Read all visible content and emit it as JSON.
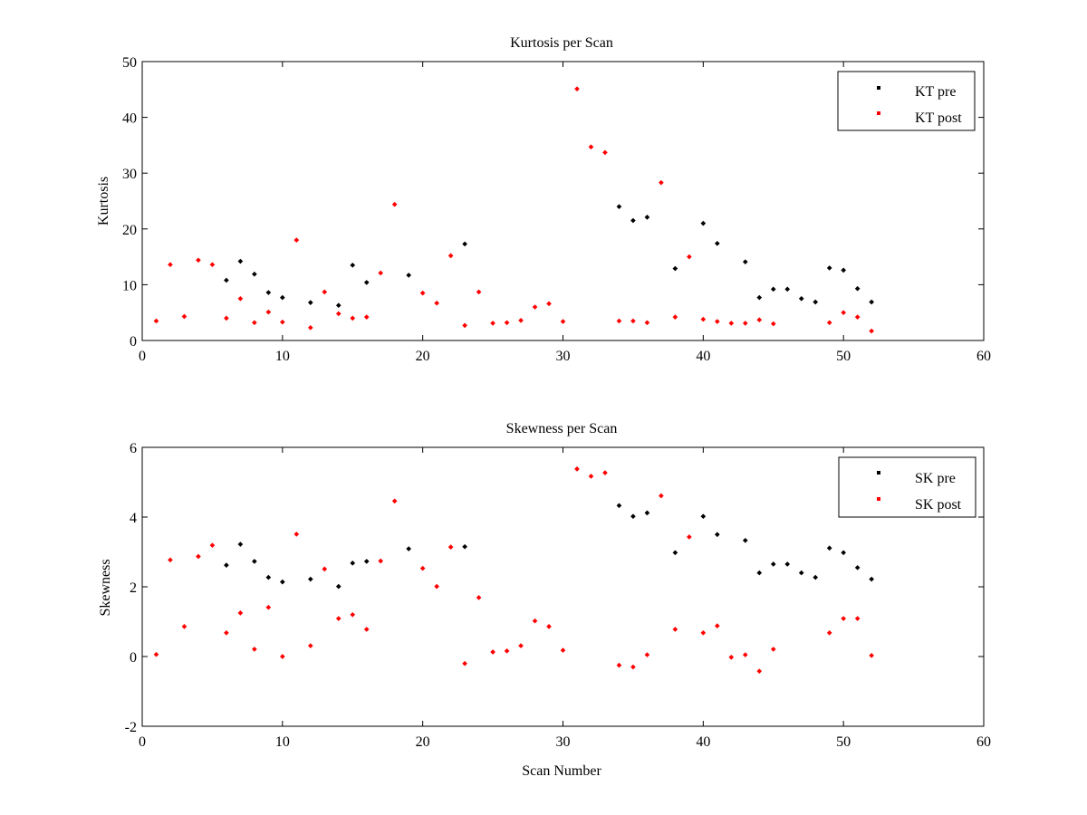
{
  "colors": {
    "pre": "#000000",
    "post": "#ff0000",
    "axes": "#000000",
    "background": "#ffffff"
  },
  "chart_data": [
    {
      "type": "scatter",
      "title": "Kurtosis per Scan",
      "xlabel": "",
      "ylabel": "Kurtosis",
      "xlim": [
        0,
        60
      ],
      "ylim": [
        0,
        50
      ],
      "xticks": [
        0,
        10,
        20,
        30,
        40,
        50,
        60
      ],
      "yticks": [
        0,
        10,
        20,
        30,
        40,
        50
      ],
      "grid": false,
      "legend": "top-right",
      "series": [
        {
          "name": "KT pre",
          "color": "#000000",
          "points": [
            [
              6,
              10.8
            ],
            [
              7,
              14.2
            ],
            [
              8,
              11.9
            ],
            [
              9,
              8.6
            ],
            [
              10,
              7.7
            ],
            [
              12,
              6.8
            ],
            [
              14,
              6.3
            ],
            [
              15,
              13.5
            ],
            [
              16,
              10.4
            ],
            [
              19,
              11.7
            ],
            [
              23,
              17.3
            ],
            [
              34,
              24.0
            ],
            [
              35,
              21.5
            ],
            [
              36,
              22.1
            ],
            [
              38,
              12.9
            ],
            [
              40,
              21.0
            ],
            [
              41,
              17.4
            ],
            [
              43,
              14.1
            ],
            [
              44,
              7.7
            ],
            [
              45,
              9.2
            ],
            [
              46,
              9.2
            ],
            [
              47,
              7.5
            ],
            [
              48,
              6.9
            ],
            [
              49,
              13.0
            ],
            [
              50,
              12.6
            ],
            [
              51,
              9.3
            ],
            [
              52,
              6.9
            ]
          ]
        },
        {
          "name": "KT post",
          "color": "#ff0000",
          "points": [
            [
              1,
              3.5
            ],
            [
              2,
              13.6
            ],
            [
              3,
              4.3
            ],
            [
              4,
              14.4
            ],
            [
              5,
              13.6
            ],
            [
              6,
              4.0
            ],
            [
              7,
              7.5
            ],
            [
              8,
              3.2
            ],
            [
              9,
              5.1
            ],
            [
              10,
              3.3
            ],
            [
              11,
              18.0
            ],
            [
              12,
              2.3
            ],
            [
              13,
              8.7
            ],
            [
              14,
              4.8
            ],
            [
              15,
              4.0
            ],
            [
              16,
              4.2
            ],
            [
              17,
              12.1
            ],
            [
              18,
              24.4
            ],
            [
              20,
              8.5
            ],
            [
              21,
              6.7
            ],
            [
              22,
              15.2
            ],
            [
              23,
              2.7
            ],
            [
              24,
              8.7
            ],
            [
              25,
              3.1
            ],
            [
              26,
              3.2
            ],
            [
              27,
              3.6
            ],
            [
              28,
              6.0
            ],
            [
              29,
              6.6
            ],
            [
              30,
              3.4
            ],
            [
              31,
              45.1
            ],
            [
              32,
              34.7
            ],
            [
              33,
              33.7
            ],
            [
              34,
              3.5
            ],
            [
              35,
              3.5
            ],
            [
              36,
              3.2
            ],
            [
              37,
              28.3
            ],
            [
              38,
              4.2
            ],
            [
              39,
              15.0
            ],
            [
              40,
              3.8
            ],
            [
              41,
              3.4
            ],
            [
              42,
              3.1
            ],
            [
              43,
              3.1
            ],
            [
              44,
              3.7
            ],
            [
              45,
              3.0
            ],
            [
              49,
              3.2
            ],
            [
              50,
              5.0
            ],
            [
              51,
              4.2
            ],
            [
              52,
              1.7
            ]
          ]
        }
      ]
    },
    {
      "type": "scatter",
      "title": "Skewness per Scan",
      "xlabel": "Scan Number",
      "ylabel": "Skewness",
      "xlim": [
        0,
        60
      ],
      "ylim": [
        -2,
        6
      ],
      "xticks": [
        0,
        10,
        20,
        30,
        40,
        50,
        60
      ],
      "yticks": [
        -2,
        0,
        2,
        4,
        6
      ],
      "grid": false,
      "legend": "top-right",
      "series": [
        {
          "name": "SK pre",
          "color": "#000000",
          "points": [
            [
              6,
              2.62
            ],
            [
              7,
              3.22
            ],
            [
              8,
              2.73
            ],
            [
              9,
              2.27
            ],
            [
              10,
              2.14
            ],
            [
              12,
              2.22
            ],
            [
              14,
              2.01
            ],
            [
              15,
              2.68
            ],
            [
              16,
              2.73
            ],
            [
              19,
              3.09
            ],
            [
              23,
              3.15
            ],
            [
              34,
              4.33
            ],
            [
              35,
              4.02
            ],
            [
              36,
              4.12
            ],
            [
              38,
              2.98
            ],
            [
              40,
              4.02
            ],
            [
              41,
              3.5
            ],
            [
              43,
              3.33
            ],
            [
              44,
              2.4
            ],
            [
              45,
              2.65
            ],
            [
              46,
              2.65
            ],
            [
              47,
              2.4
            ],
            [
              48,
              2.27
            ],
            [
              49,
              3.11
            ],
            [
              50,
              2.98
            ],
            [
              51,
              2.55
            ],
            [
              52,
              2.22
            ]
          ]
        },
        {
          "name": "SK post",
          "color": "#ff0000",
          "points": [
            [
              1,
              0.06
            ],
            [
              2,
              2.77
            ],
            [
              3,
              0.86
            ],
            [
              4,
              2.87
            ],
            [
              5,
              3.19
            ],
            [
              6,
              0.68
            ],
            [
              7,
              1.25
            ],
            [
              8,
              0.21
            ],
            [
              9,
              1.41
            ],
            [
              10,
              0.0
            ],
            [
              11,
              3.51
            ],
            [
              12,
              0.31
            ],
            [
              13,
              2.51
            ],
            [
              14,
              1.09
            ],
            [
              15,
              1.2
            ],
            [
              16,
              0.78
            ],
            [
              17,
              2.74
            ],
            [
              18,
              4.46
            ],
            [
              20,
              2.53
            ],
            [
              21,
              2.01
            ],
            [
              22,
              3.14
            ],
            [
              23,
              -0.2
            ],
            [
              24,
              1.69
            ],
            [
              25,
              0.13
            ],
            [
              26,
              0.16
            ],
            [
              27,
              0.31
            ],
            [
              28,
              1.02
            ],
            [
              29,
              0.86
            ],
            [
              30,
              0.18
            ],
            [
              31,
              5.38
            ],
            [
              32,
              5.17
            ],
            [
              33,
              5.27
            ],
            [
              34,
              -0.25
            ],
            [
              35,
              -0.3
            ],
            [
              36,
              0.05
            ],
            [
              37,
              4.61
            ],
            [
              38,
              0.78
            ],
            [
              39,
              3.43
            ],
            [
              40,
              0.68
            ],
            [
              41,
              0.88
            ],
            [
              42,
              -0.02
            ],
            [
              43,
              0.05
            ],
            [
              44,
              -0.42
            ],
            [
              45,
              0.21
            ],
            [
              49,
              0.68
            ],
            [
              50,
              1.09
            ],
            [
              51,
              1.09
            ],
            [
              52,
              0.03
            ]
          ]
        }
      ]
    }
  ]
}
